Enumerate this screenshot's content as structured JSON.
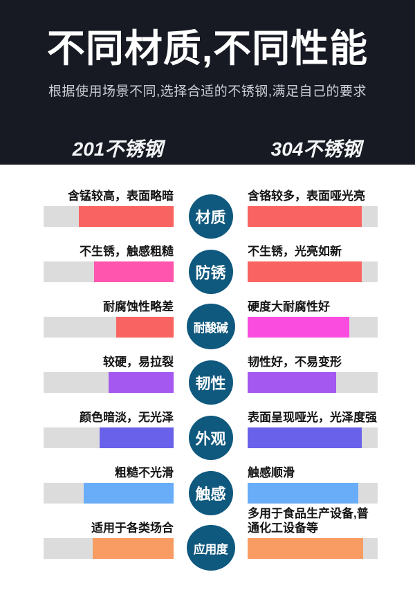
{
  "header": {
    "bg": "#171a23",
    "title": "不同材质,不同性能",
    "subtitle": "根据使用场景不同,选择合适的不锈钢,满足自己的要求",
    "left_column_title": "201不锈钢",
    "right_column_title": "304不锈钢"
  },
  "comparison": {
    "track_color": "#dcdcdc",
    "badge_color": "#0f587e",
    "rows": [
      {
        "badge": "材质",
        "left": {
          "label": "含锰较高，表面略暗",
          "fill_percent": 73,
          "color": "#f96462"
        },
        "right": {
          "label": "含铬较多，表面哑光亮",
          "fill_percent": 88,
          "color": "#f96462"
        }
      },
      {
        "badge": "防锈",
        "left": {
          "label": "不生锈，触感粗糙",
          "fill_percent": 61,
          "color": "#ff55ae"
        },
        "right": {
          "label": "不生锈，光亮如新",
          "fill_percent": 88,
          "color": "#f96462"
        }
      },
      {
        "badge": "耐酸碱",
        "left": {
          "label": "耐腐蚀性略差",
          "fill_percent": 44,
          "color": "#f96462"
        },
        "right": {
          "label": "硬度大耐腐性好",
          "fill_percent": 78,
          "color": "#fa4ddf"
        }
      },
      {
        "badge": "韧性",
        "left": {
          "label": "较硬，易拉裂",
          "fill_percent": 50,
          "color": "#a558f0"
        },
        "right": {
          "label": "韧性好，不易变形",
          "fill_percent": 68,
          "color": "#a558f0"
        }
      },
      {
        "badge": "外观",
        "left": {
          "label": "颜色暗淡，无光泽",
          "fill_percent": 57,
          "color": "#6a61ea"
        },
        "right": {
          "label": "表面呈现哑光，光泽度强",
          "fill_percent": 88,
          "color": "#6a61ea"
        }
      },
      {
        "badge": "触感",
        "left": {
          "label": "粗糙不光滑",
          "fill_percent": 69,
          "color": "#69acf7"
        },
        "right": {
          "label": "触感顺滑",
          "fill_percent": 85,
          "color": "#69acf7"
        }
      },
      {
        "badge": "应用度",
        "left": {
          "label": "适用于各类场合",
          "fill_percent": 62,
          "color": "#f89c64"
        },
        "right": {
          "label": "多用于食品生产设备,普通化工设备等",
          "fill_percent": 89,
          "color": "#f89c64"
        }
      }
    ]
  },
  "chart_data": {
    "type": "bar",
    "orientation": "horizontal",
    "title": "不同材质,不同性能",
    "subtitle": "根据使用场景不同,选择合适的不锈钢,满足自己的要求",
    "categories": [
      "材质",
      "防锈",
      "耐酸碱",
      "韧性",
      "外观",
      "触感",
      "应用度"
    ],
    "series": [
      {
        "name": "201不锈钢",
        "values": [
          73,
          61,
          44,
          50,
          57,
          69,
          62
        ],
        "labels": [
          "含锰较高，表面略暗",
          "不生锈，触感粗糙",
          "耐腐蚀性略差",
          "较硬，易拉裂",
          "颜色暗淡，无光泽",
          "粗糙不光滑",
          "适用于各类场合"
        ]
      },
      {
        "name": "304不锈钢",
        "values": [
          88,
          88,
          78,
          68,
          88,
          85,
          89
        ],
        "labels": [
          "含铬较多，表面哑光亮",
          "不生锈，光亮如新",
          "硬度大耐腐性好",
          "韧性好，不易变形",
          "表面呈现哑光，光泽度强",
          "触感顺滑",
          "多用于食品生产设备,普通化工设备等"
        ]
      }
    ],
    "value_unit": "percent of track filled (estimated from bar lengths)",
    "xlim": [
      0,
      100
    ],
    "legend_position": "column headers (left=201, right=304)",
    "grid": false
  }
}
